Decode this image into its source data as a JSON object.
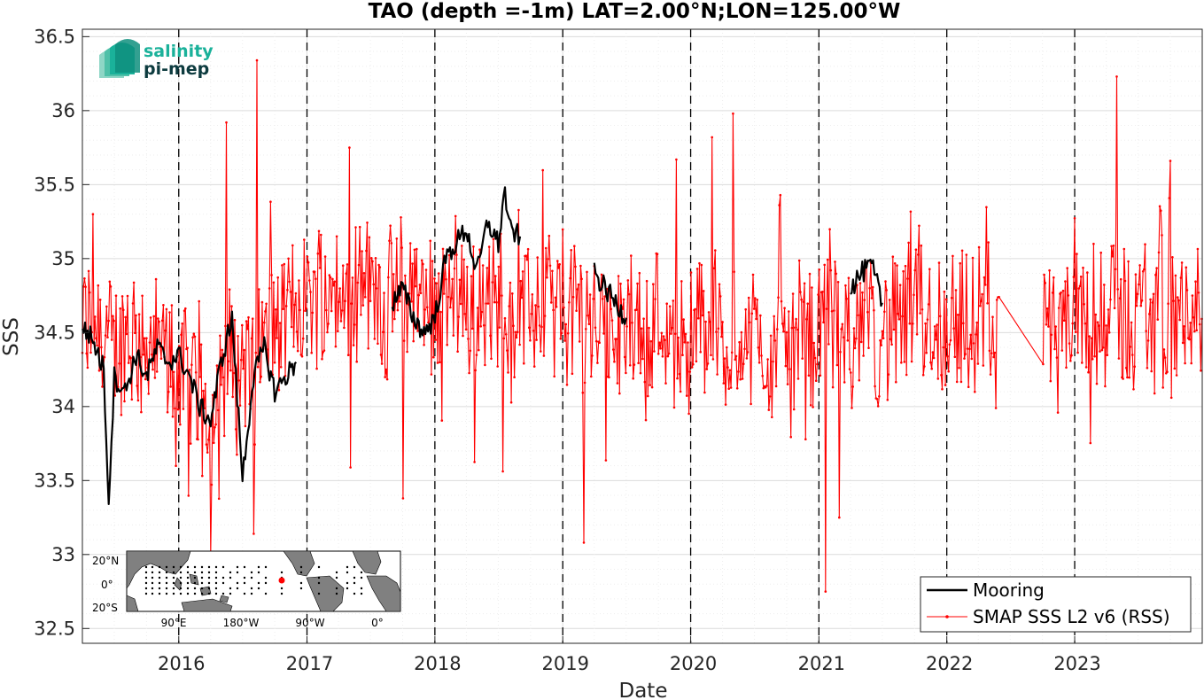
{
  "chart_data": {
    "type": "line",
    "title": "TAO (depth =-1m) LAT=2.00°N;LON=125.00°W",
    "xlabel": "Date",
    "ylabel": "SSS",
    "xlim": [
      "2015-04-01",
      "2023-12-31"
    ],
    "ylim": [
      32.4,
      36.55
    ],
    "x_ticks": [
      "2016",
      "2017",
      "2018",
      "2019",
      "2020",
      "2021",
      "2022",
      "2023"
    ],
    "y_ticks": [
      "32.5",
      "33",
      "33.5",
      "34",
      "34.5",
      "35",
      "35.5",
      "36",
      "36.5"
    ],
    "grid": true,
    "minor_grid": true,
    "year_boundaries_dashed": [
      "2016-01-01",
      "2017-01-01",
      "2018-01-01",
      "2019-01-01",
      "2020-01-01",
      "2021-01-01",
      "2022-01-01",
      "2023-01-01"
    ],
    "legend_position": "bottom-right",
    "series": [
      {
        "name": "Mooring",
        "color": "#000000",
        "style": "thick line",
        "segments": [
          [
            [
              "2015-04-01",
              34.55
            ],
            [
              "2015-05-01",
              34.45
            ],
            [
              "2015-06-01",
              34.25
            ],
            [
              "2015-06-15",
              33.36
            ],
            [
              "2015-07-01",
              34.2
            ],
            [
              "2015-08-01",
              34.1
            ],
            [
              "2015-09-01",
              34.35
            ],
            [
              "2015-10-01",
              34.2
            ],
            [
              "2015-11-01",
              34.4
            ],
            [
              "2015-12-01",
              34.3
            ],
            [
              "2016-01-01",
              34.35
            ],
            [
              "2016-02-01",
              34.2
            ],
            [
              "2016-03-01",
              34.0
            ],
            [
              "2016-04-01",
              33.9
            ],
            [
              "2016-05-01",
              34.3
            ],
            [
              "2016-06-01",
              34.6
            ],
            [
              "2016-07-01",
              33.52
            ],
            [
              "2016-08-01",
              34.2
            ],
            [
              "2016-09-01",
              34.4
            ],
            [
              "2016-10-01",
              34.1
            ],
            [
              "2016-11-01",
              34.2
            ],
            [
              "2016-12-01",
              34.3
            ]
          ],
          [
            [
              "2017-09-01",
              34.7
            ],
            [
              "2017-10-01",
              34.8
            ],
            [
              "2017-11-01",
              34.6
            ],
            [
              "2017-12-01",
              34.5
            ],
            [
              "2018-01-01",
              34.6
            ],
            [
              "2018-02-01",
              35.0
            ],
            [
              "2018-03-01",
              35.1
            ],
            [
              "2018-04-01",
              35.2
            ],
            [
              "2018-05-01",
              34.9
            ],
            [
              "2018-06-01",
              35.25
            ],
            [
              "2018-07-01",
              35.1
            ],
            [
              "2018-07-20",
              35.47
            ],
            [
              "2018-08-01",
              35.2
            ],
            [
              "2018-09-01",
              35.15
            ]
          ],
          [
            [
              "2019-04-01",
              34.9
            ],
            [
              "2019-05-01",
              34.8
            ],
            [
              "2019-06-01",
              34.7
            ],
            [
              "2019-07-01",
              34.6
            ]
          ],
          [
            [
              "2021-04-01",
              34.8
            ],
            [
              "2021-05-01",
              34.9
            ],
            [
              "2021-06-01",
              34.95
            ],
            [
              "2021-07-01",
              34.7
            ]
          ]
        ]
      },
      {
        "name": "SMAP SSS L2 v6 (RSS)",
        "color": "#ff0000",
        "style": "thin line with dots",
        "base_level": [
          [
            "2015-04-01",
            34.5
          ],
          [
            "2015-10-01",
            34.4
          ],
          [
            "2016-04-01",
            34.1
          ],
          [
            "2016-10-01",
            34.5
          ],
          [
            "2017-04-01",
            34.9
          ],
          [
            "2017-10-01",
            34.7
          ],
          [
            "2018-04-01",
            34.7
          ],
          [
            "2018-10-01",
            34.65
          ],
          [
            "2019-04-01",
            34.6
          ],
          [
            "2019-10-01",
            34.55
          ],
          [
            "2020-04-01",
            34.5
          ],
          [
            "2020-10-01",
            34.4
          ],
          [
            "2021-04-01",
            34.55
          ],
          [
            "2021-10-01",
            34.5
          ],
          [
            "2022-04-01",
            34.45
          ],
          [
            "2022-10-01",
            34.45
          ],
          [
            "2023-04-01",
            34.65
          ],
          [
            "2023-10-01",
            34.6
          ],
          [
            "2023-12-31",
            34.55
          ]
        ],
        "spread": 0.45,
        "extremes": [
          [
            "2015-05-01",
            35.3
          ],
          [
            "2016-04-01",
            33.0
          ],
          [
            "2016-05-15",
            35.92
          ],
          [
            "2016-08-10",
            36.34
          ],
          [
            "2016-08-01",
            33.14
          ],
          [
            "2017-05-01",
            35.75
          ],
          [
            "2017-10-01",
            33.38
          ],
          [
            "2019-03-01",
            33.08
          ],
          [
            "2020-05-01",
            35.98
          ],
          [
            "2021-01-20",
            32.75
          ],
          [
            "2021-03-01",
            33.25
          ],
          [
            "2023-05-01",
            36.23
          ],
          [
            "2023-10-01",
            35.66
          ],
          [
            "2020-03-01",
            35.82
          ]
        ],
        "data_gap": [
          "2022-06-01",
          "2022-10-01"
        ]
      }
    ],
    "inset_map": {
      "lat_ticks": [
        "20°N",
        "0°",
        "20°S"
      ],
      "lon_ticks": [
        "90°E",
        "180°W",
        "90°W",
        "0°"
      ],
      "selected_station_color": "#ff0000"
    }
  },
  "logo": {
    "line1": "salinity",
    "line2": "pi-mep",
    "color1": "#1ab19a",
    "color2": "#0d3b3f"
  },
  "legend": {
    "items": [
      "Mooring",
      "SMAP SSS L2 v6 (RSS)"
    ]
  }
}
